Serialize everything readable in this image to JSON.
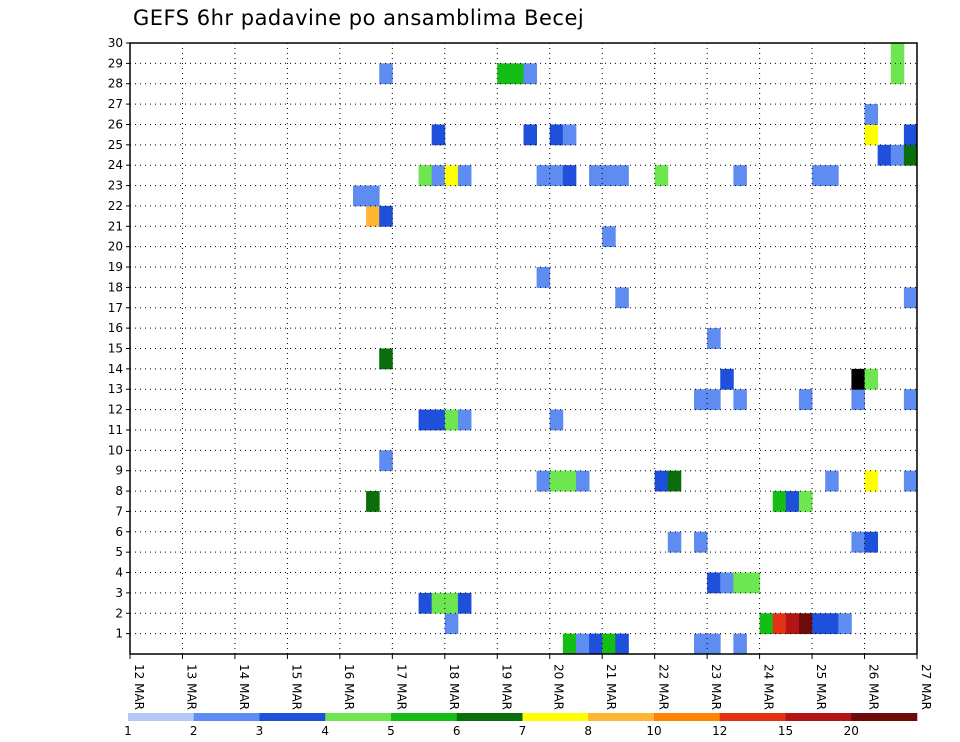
{
  "chart_data": {
    "type": "heatmap",
    "title": "GEFS 6hr padavine po ansamblima Becej",
    "x_labels": [
      "12 MAR",
      "13 MAR",
      "14 MAR",
      "15 MAR",
      "16 MAR",
      "17 MAR",
      "18 MAR",
      "19 MAR",
      "20 MAR",
      "21 MAR",
      "22 MAR",
      "23 MAR",
      "24 MAR",
      "25 MAR",
      "26 MAR",
      "27 MAR"
    ],
    "y_labels": [
      "1",
      "2",
      "3",
      "4",
      "5",
      "6",
      "7",
      "8",
      "9",
      "10",
      "11",
      "12",
      "13",
      "14",
      "15",
      "16",
      "17",
      "18",
      "19",
      "20",
      "21",
      "22",
      "23",
      "24",
      "25",
      "26",
      "27",
      "28",
      "29",
      "30"
    ],
    "y_range": [
      0,
      30
    ],
    "x_range_days": [
      12,
      27
    ],
    "grid": true,
    "colorbar": {
      "labels": [
        "1",
        "2",
        "3",
        "4",
        "5",
        "6",
        "7",
        "8",
        "10",
        "12",
        "15",
        "20"
      ],
      "colors": [
        "#b4c8f5",
        "#5f8cf0",
        "#1e50dc",
        "#6ee650",
        "#14be14",
        "#0a6e0a",
        "#ffff00",
        "#ffb432",
        "#ff8200",
        "#e63214",
        "#b41414",
        "#6e0a0a"
      ]
    },
    "cells": [
      [
        20.25,
        0,
        4
      ],
      [
        20.5,
        0,
        1
      ],
      [
        20.75,
        0,
        2
      ],
      [
        21.0,
        0,
        4
      ],
      [
        21.25,
        0,
        2
      ],
      [
        22.75,
        0,
        1
      ],
      [
        23.0,
        0,
        1
      ],
      [
        23.5,
        0,
        1
      ],
      [
        18.0,
        1,
        1
      ],
      [
        24.0,
        1,
        4
      ],
      [
        24.25,
        1,
        9
      ],
      [
        24.5,
        1,
        10
      ],
      [
        24.75,
        1,
        11
      ],
      [
        25.0,
        1,
        2
      ],
      [
        25.25,
        1,
        2
      ],
      [
        25.5,
        1,
        1
      ],
      [
        17.5,
        2,
        2
      ],
      [
        17.75,
        2,
        3
      ],
      [
        18.0,
        2,
        3
      ],
      [
        18.25,
        2,
        2
      ],
      [
        23.0,
        3,
        2
      ],
      [
        23.25,
        3,
        1
      ],
      [
        23.5,
        3,
        3
      ],
      [
        23.75,
        3,
        3
      ],
      [
        22.25,
        5,
        1
      ],
      [
        22.75,
        5,
        1
      ],
      [
        25.75,
        5,
        1
      ],
      [
        26.0,
        5,
        2
      ],
      [
        16.5,
        7,
        5
      ],
      [
        24.25,
        7,
        4
      ],
      [
        24.5,
        7,
        2
      ],
      [
        24.75,
        7,
        3
      ],
      [
        19.75,
        8,
        1
      ],
      [
        20.0,
        8,
        3
      ],
      [
        20.25,
        8,
        3
      ],
      [
        20.5,
        8,
        1
      ],
      [
        22.0,
        8,
        2
      ],
      [
        22.25,
        8,
        5
      ],
      [
        25.25,
        8,
        1
      ],
      [
        26.0,
        8,
        6
      ],
      [
        26.75,
        8,
        1
      ],
      [
        16.75,
        9,
        1
      ],
      [
        17.5,
        11,
        2
      ],
      [
        17.75,
        11,
        2
      ],
      [
        18.0,
        11,
        3
      ],
      [
        18.25,
        11,
        1
      ],
      [
        20.0,
        11,
        1
      ],
      [
        22.75,
        12,
        1
      ],
      [
        23.0,
        12,
        1
      ],
      [
        23.5,
        12,
        1
      ],
      [
        24.75,
        12,
        1
      ],
      [
        25.75,
        12,
        1
      ],
      [
        26.75,
        12,
        1
      ],
      [
        23.25,
        13,
        2
      ],
      [
        25.75,
        13,
        12
      ],
      [
        26.0,
        13,
        3
      ],
      [
        16.75,
        14,
        5
      ],
      [
        23.0,
        15,
        1
      ],
      [
        21.25,
        17,
        1
      ],
      [
        26.75,
        17,
        1
      ],
      [
        19.75,
        18,
        1
      ],
      [
        21.0,
        20,
        1
      ],
      [
        16.5,
        21,
        7
      ],
      [
        16.75,
        21,
        2
      ],
      [
        16.25,
        22,
        1
      ],
      [
        16.5,
        22,
        1
      ],
      [
        17.5,
        23,
        3
      ],
      [
        17.75,
        23,
        1
      ],
      [
        18.0,
        23,
        6
      ],
      [
        18.25,
        23,
        1
      ],
      [
        19.75,
        23,
        1
      ],
      [
        20.0,
        23,
        1
      ],
      [
        20.25,
        23,
        2
      ],
      [
        20.75,
        23,
        1
      ],
      [
        21.0,
        23,
        1
      ],
      [
        21.25,
        23,
        1
      ],
      [
        22.0,
        23,
        3
      ],
      [
        23.5,
        23,
        1
      ],
      [
        25.0,
        23,
        1
      ],
      [
        25.25,
        23,
        1
      ],
      [
        26.25,
        24,
        2
      ],
      [
        26.5,
        24,
        1
      ],
      [
        26.75,
        24,
        5
      ],
      [
        17.75,
        25,
        2
      ],
      [
        19.5,
        25,
        2
      ],
      [
        20.0,
        25,
        2
      ],
      [
        20.25,
        25,
        1
      ],
      [
        26.0,
        25,
        6
      ],
      [
        26.75,
        25,
        2
      ],
      [
        26.0,
        26,
        1
      ],
      [
        16.75,
        28,
        1
      ],
      [
        19.0,
        28,
        4
      ],
      [
        19.25,
        28,
        4
      ],
      [
        19.5,
        28,
        1
      ],
      [
        26.5,
        28,
        3
      ],
      [
        26.5,
        29,
        3
      ]
    ]
  }
}
